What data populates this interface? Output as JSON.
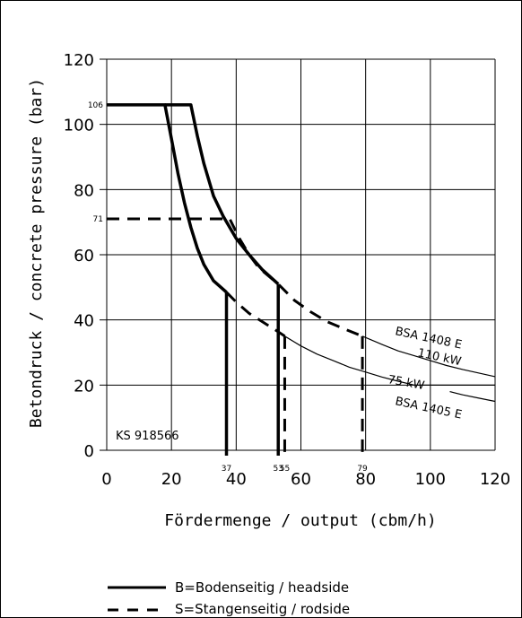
{
  "chart_data": {
    "type": "line",
    "xlabel": "Fördermenge / output (cbm/h)",
    "ylabel": "Betondruck / concrete pressure (bar)",
    "xlim": [
      0,
      120
    ],
    "ylim": [
      0,
      120
    ],
    "x_ticks": [
      0,
      20,
      40,
      60,
      80,
      100,
      120
    ],
    "y_ticks": [
      0,
      20,
      40,
      60,
      80,
      100,
      120
    ],
    "grid": true,
    "ref_y_labels": [
      "106",
      "71"
    ],
    "ref_y_values": [
      106,
      71
    ],
    "ref_x_labels": [
      "37",
      "53",
      "55",
      "79"
    ],
    "ref_x_values": [
      37,
      53,
      55,
      79
    ],
    "series": [
      {
        "name": "B=Bodenseitig / headside",
        "style": "solid",
        "points": [
          [
            0,
            106
          ],
          [
            18,
            106
          ],
          [
            20,
            95.5
          ],
          [
            22,
            85
          ],
          [
            24,
            76
          ],
          [
            26,
            68.4
          ],
          [
            28,
            62
          ],
          [
            30,
            57
          ],
          [
            33,
            52
          ],
          [
            37,
            48.5
          ]
        ],
        "drop_x": 37
      },
      {
        "name": "B=Bodenseitig / headside",
        "style": "solid",
        "points": [
          [
            18,
            106
          ],
          [
            26,
            106
          ],
          [
            28,
            96.5
          ],
          [
            30,
            88
          ],
          [
            33,
            78
          ],
          [
            36,
            71.8
          ],
          [
            40,
            65
          ],
          [
            44,
            60
          ],
          [
            48,
            55.5
          ],
          [
            53,
            51
          ]
        ],
        "drop_x": 53
      },
      {
        "name": "S=Stangenseitig / rodside",
        "style": "dashed",
        "points": [
          [
            0,
            71
          ],
          [
            38,
            71
          ],
          [
            41,
            65
          ],
          [
            44,
            60
          ],
          [
            47,
            56
          ],
          [
            53,
            51
          ],
          [
            58,
            46
          ],
          [
            63,
            42.5
          ],
          [
            68,
            39.5
          ],
          [
            74,
            37
          ],
          [
            79,
            35
          ]
        ],
        "drop_x": 79
      },
      {
        "name": "S=Stangenseitig / rodside",
        "style": "dashed",
        "points": [
          [
            37,
            48.5
          ],
          [
            40,
            45.5
          ],
          [
            44,
            42
          ],
          [
            48,
            39.5
          ],
          [
            52,
            37
          ],
          [
            55,
            35
          ]
        ],
        "drop_x": 55
      },
      {
        "name": "110 kW",
        "style": "thin",
        "points": [
          [
            79,
            35
          ],
          [
            85,
            32.5
          ],
          [
            90,
            30.5
          ],
          [
            95,
            29
          ],
          [
            100,
            27.5
          ],
          [
            105,
            26
          ],
          [
            110,
            24.8
          ],
          [
            115,
            23.7
          ],
          [
            120,
            22.6
          ]
        ]
      },
      {
        "name": "75 kW",
        "style": "thin",
        "points": [
          [
            55,
            35
          ],
          [
            60,
            32
          ],
          [
            65,
            29.5
          ],
          [
            70,
            27.5
          ],
          [
            75,
            25.5
          ],
          [
            80,
            24
          ],
          [
            85,
            22.5
          ],
          [
            90,
            21.2
          ],
          [
            95,
            20
          ]
        ],
        "extension": [
          [
            95,
            20
          ],
          [
            120,
            20
          ]
        ]
      },
      {
        "name": "BSA 1405 E",
        "style": "thin",
        "points": [
          [
            106,
            18
          ],
          [
            110,
            17
          ],
          [
            115,
            16
          ],
          [
            120,
            15
          ]
        ]
      }
    ],
    "annotations": [
      "BSA 1408 E",
      "110 kW",
      "75 kW",
      "BSA 1405 E",
      "KS 918566"
    ]
  },
  "legend": {
    "solid_label": "B=Bodenseitig / headside",
    "dashed_label": "S=Stangenseitig / rodside"
  }
}
